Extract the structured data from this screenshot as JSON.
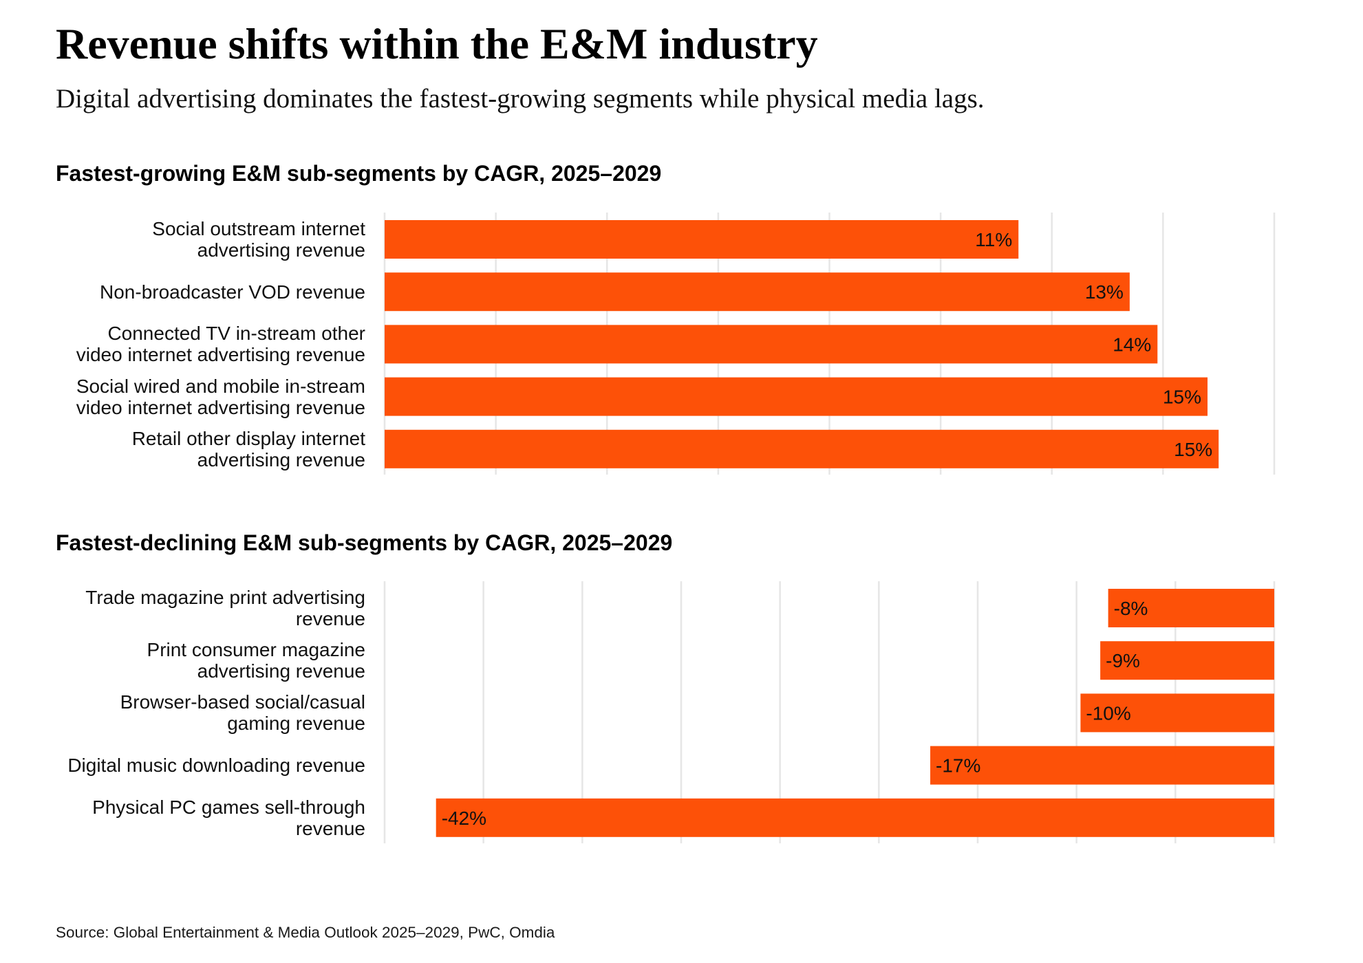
{
  "title": "Revenue shifts within the E&M industry",
  "subtitle": "Digital advertising dominates the fastest-growing segments while physical media lags.",
  "source": "Source: Global Entertainment & Media Outlook 2025–2029, PwC, Omdia",
  "colors": {
    "bar": "#FD5108",
    "gridline": "#E6E6E6",
    "text": "#111111"
  },
  "chart_data": [
    {
      "type": "bar",
      "orientation": "horizontal",
      "title": "Fastest-growing E&M sub-segments by CAGR, 2025–2029",
      "categories": [
        "Social outstream internet\nadvertising revenue",
        "Non-broadcaster VOD revenue",
        "Connected TV in-stream other\nvideo internet advertising revenue",
        "Social wired and mobile in-stream\nvideo internet advertising revenue",
        "Retail other display internet\nadvertising revenue"
      ],
      "values": [
        11.4,
        13.4,
        13.9,
        14.8,
        15.0
      ],
      "value_labels": [
        "11%",
        "13%",
        "14%",
        "15%",
        "15%"
      ],
      "xlim": [
        0,
        16
      ],
      "grid": true,
      "grid_step": 2
    },
    {
      "type": "bar",
      "orientation": "horizontal",
      "title": "Fastest-declining E&M sub-segments by CAGR, 2025–2029",
      "categories": [
        "Trade magazine print advertising\nrevenue",
        "Print consumer magazine\nadvertising revenue",
        "Browser-based social/casual\ngaming revenue",
        "Digital music downloading revenue",
        "Physical PC games sell-through\nrevenue"
      ],
      "values": [
        -8.4,
        -8.8,
        -9.8,
        -17.4,
        -42.4
      ],
      "value_labels": [
        "-8%",
        "-9%",
        "-10%",
        "-17%",
        "-42%"
      ],
      "xlim": [
        -45,
        0
      ],
      "grid": true,
      "grid_step": 5
    }
  ]
}
